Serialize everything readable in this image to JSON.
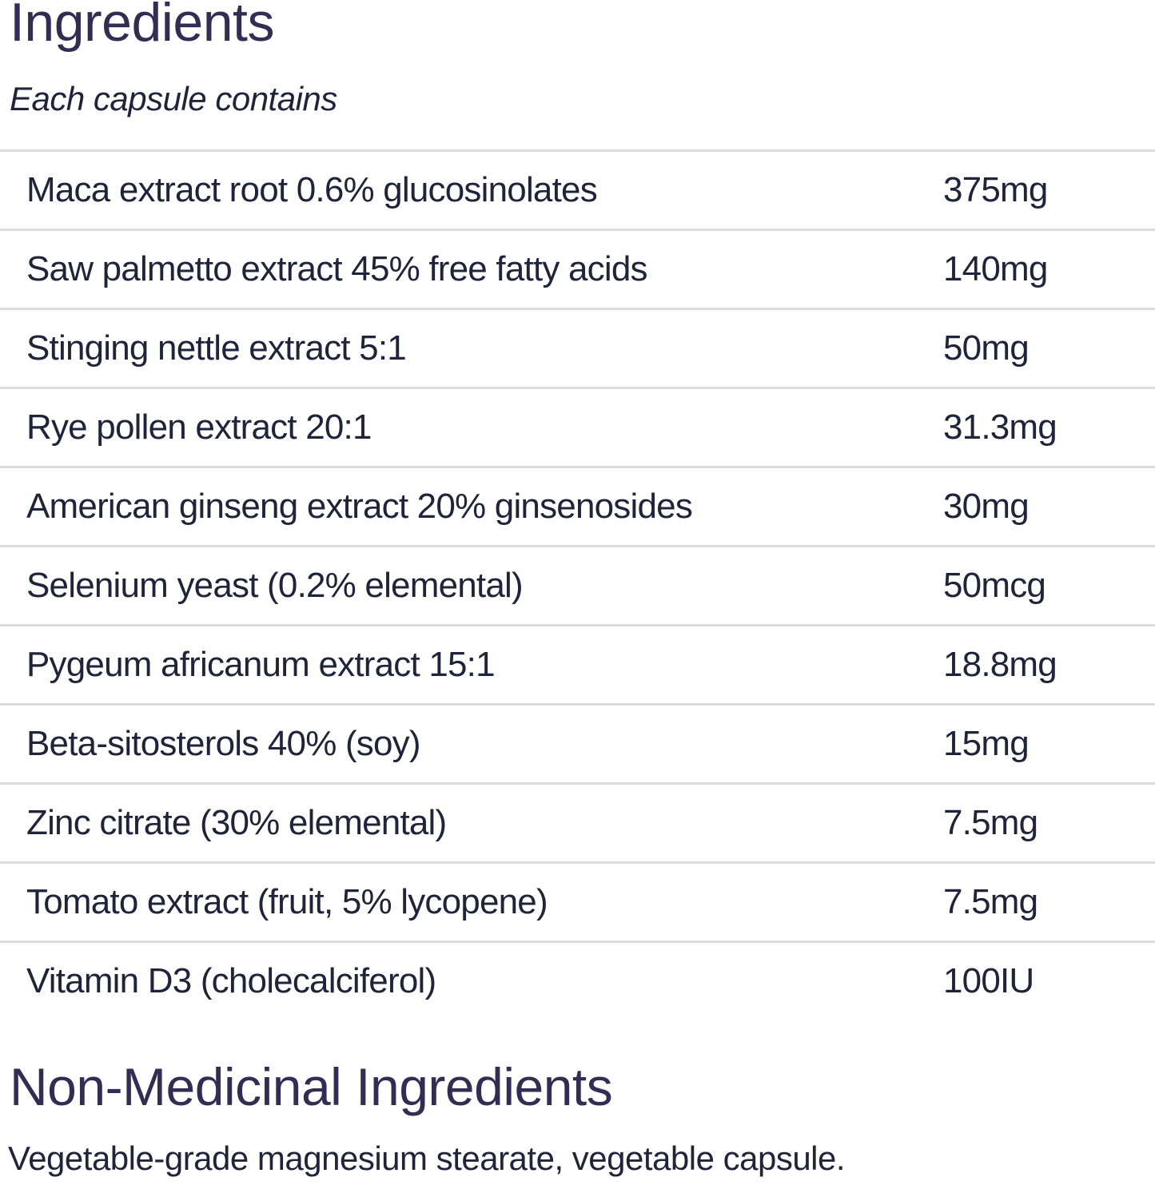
{
  "document": {
    "title": "Ingredients",
    "subtitle": "Each capsule contains",
    "ingredients_table": {
      "rows": [
        {
          "name": "Maca extract root 0.6% glucosinolates",
          "amount": "375mg"
        },
        {
          "name": "Saw palmetto extract 45% free fatty acids",
          "amount": "140mg"
        },
        {
          "name": "Stinging nettle extract 5:1",
          "amount": "50mg"
        },
        {
          "name": "Rye pollen extract 20:1",
          "amount": "31.3mg"
        },
        {
          "name": "American ginseng extract 20% ginsenosides",
          "amount": "30mg"
        },
        {
          "name": "Selenium yeast (0.2% elemental)",
          "amount": "50mcg"
        },
        {
          "name": "Pygeum africanum extract 15:1",
          "amount": "18.8mg"
        },
        {
          "name": "Beta-sitosterols 40% (soy)",
          "amount": "15mg"
        },
        {
          "name": "Zinc citrate (30% elemental)",
          "amount": "7.5mg"
        },
        {
          "name": "Tomato extract (fruit, 5% lycopene)",
          "amount": "7.5mg"
        },
        {
          "name": "Vitamin D3 (cholecalciferol)",
          "amount": "100IU"
        }
      ]
    },
    "non_medicinal": {
      "title": "Non-Medicinal Ingredients",
      "text": "Vegetable-grade magnesium stearate, vegetable capsule."
    },
    "colors": {
      "heading": "#332c55",
      "body": "#20243a",
      "divider": "#dbdbdb",
      "background": "#ffffff"
    }
  }
}
